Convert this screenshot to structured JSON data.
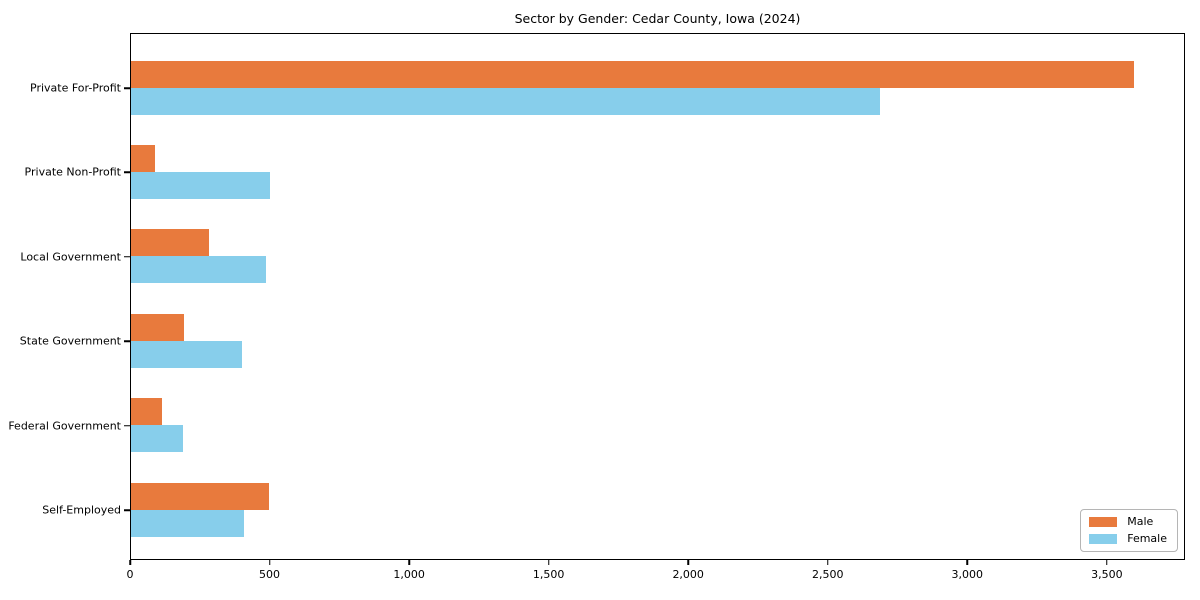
{
  "title": "Sector by Gender: Cedar County, Iowa (2024)",
  "colors": {
    "male": "#E87A3D",
    "female": "#87CEEB",
    "axis": "#000000",
    "background": "#ffffff",
    "legend_border": "#b5b5b5"
  },
  "legend": {
    "position": "lower right",
    "entries": [
      {
        "label": "Male",
        "color": "#E87A3D"
      },
      {
        "label": "Female",
        "color": "#87CEEB"
      }
    ]
  },
  "chart_data": {
    "type": "bar",
    "orientation": "horizontal",
    "title": "Sector by Gender: Cedar County, Iowa (2024)",
    "categories": [
      "Private For-Profit",
      "Private Non-Profit",
      "Local Government",
      "State Government",
      "Federal Government",
      "Self-Employed"
    ],
    "series": [
      {
        "name": "Male",
        "color": "#E87A3D",
        "values": [
          3600,
          87,
          280,
          192,
          110,
          494
        ]
      },
      {
        "name": "Female",
        "color": "#87CEEB",
        "values": [
          2690,
          500,
          486,
          398,
          187,
          406
        ]
      }
    ],
    "xlabel": "",
    "ylabel": "",
    "xlim": [
      0,
      3780
    ],
    "x_ticks": [
      0,
      500,
      1000,
      1500,
      2000,
      2500,
      3000,
      3500
    ],
    "x_tick_labels": [
      "0",
      "500",
      "1,000",
      "1,500",
      "2,000",
      "2,500",
      "3,000",
      "3,500"
    ],
    "grid": false,
    "legend_position": "lower right"
  }
}
